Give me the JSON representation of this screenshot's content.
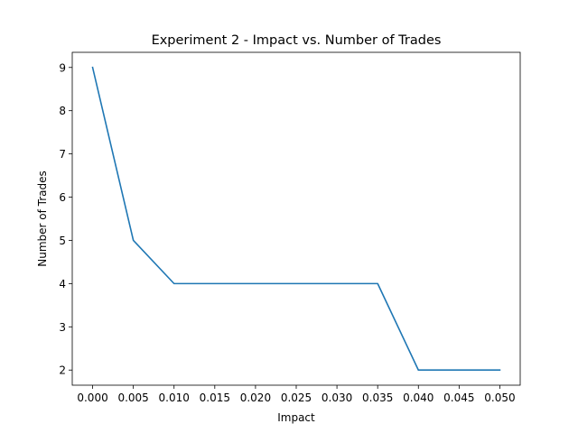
{
  "chart_data": {
    "type": "line",
    "title": "Experiment 2 - Impact vs. Number of Trades",
    "xlabel": "Impact",
    "ylabel": "Number of Trades",
    "x": [
      0.0,
      0.005,
      0.01,
      0.015,
      0.02,
      0.025,
      0.03,
      0.035,
      0.04,
      0.045,
      0.05
    ],
    "series": [
      {
        "values": [
          9,
          5,
          4,
          4,
          4,
          4,
          4,
          4,
          2,
          2,
          2
        ]
      }
    ],
    "xlim": [
      -0.0025,
      0.0525
    ],
    "ylim": [
      1.65,
      9.35
    ],
    "x_ticks": [
      0.0,
      0.005,
      0.01,
      0.015,
      0.02,
      0.025,
      0.03,
      0.035,
      0.04,
      0.045,
      0.05
    ],
    "x_tick_labels": [
      "0.000",
      "0.005",
      "0.010",
      "0.015",
      "0.020",
      "0.025",
      "0.030",
      "0.035",
      "0.040",
      "0.045",
      "0.050"
    ],
    "y_ticks": [
      2,
      3,
      4,
      5,
      6,
      7,
      8,
      9
    ],
    "y_tick_labels": [
      "2",
      "3",
      "4",
      "5",
      "6",
      "7",
      "8",
      "9"
    ],
    "grid": false,
    "line_color": "#1f77b4"
  }
}
